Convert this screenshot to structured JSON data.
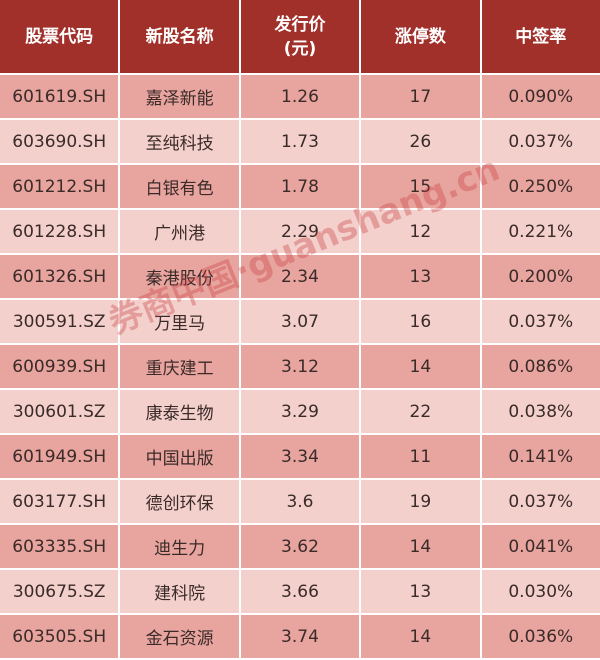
{
  "headers": [
    "股票代码",
    "新股名称",
    "发行价\n(元)",
    "涨停数",
    "中签率"
  ],
  "header_lines": {
    "price_line1": "发行价",
    "price_line2": "(元)"
  },
  "rows": [
    [
      "601619.SH",
      "嘉泽新能",
      "1.26",
      "17",
      "0.090%"
    ],
    [
      "603690.SH",
      "至纯科技",
      "1.73",
      "26",
      "0.037%"
    ],
    [
      "601212.SH",
      "白银有色",
      "1.78",
      "15",
      "0.250%"
    ],
    [
      "601228.SH",
      "广州港",
      "2.29",
      "12",
      "0.221%"
    ],
    [
      "601326.SH",
      "秦港股份",
      "2.34",
      "13",
      "0.200%"
    ],
    [
      "300591.SZ",
      "万里马",
      "3.07",
      "16",
      "0.037%"
    ],
    [
      "600939.SH",
      "重庆建工",
      "3.12",
      "14",
      "0.086%"
    ],
    [
      "300601.SZ",
      "康泰生物",
      "3.29",
      "22",
      "0.038%"
    ],
    [
      "601949.SH",
      "中国出版",
      "3.34",
      "11",
      "0.141%"
    ],
    [
      "603177.SH",
      "德创环保",
      "3.6",
      "19",
      "0.037%"
    ],
    [
      "603335.SH",
      "迪生力",
      "3.62",
      "14",
      "0.041%"
    ],
    [
      "300675.SZ",
      "建科院",
      "3.66",
      "13",
      "0.030%"
    ],
    [
      "603505.SH",
      "金石资源",
      "3.74",
      "14",
      "0.036%"
    ]
  ],
  "watermark": "券商中国·guanshang.cn",
  "colors": {
    "header": "#a1302a",
    "row_dark": "#e8a49e",
    "row_light": "#f3d0cc"
  }
}
